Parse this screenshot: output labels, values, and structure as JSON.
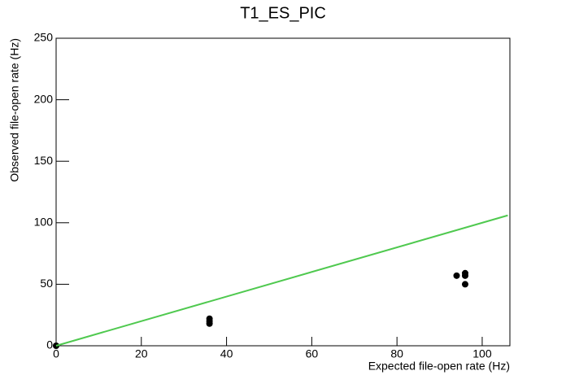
{
  "chart_data": {
    "type": "scatter",
    "title": "T1_ES_PIC",
    "x_label": "Expected file-open rate (Hz)",
    "y_label": "Observed file-open rate (Hz)",
    "xlim": [
      0,
      106.5
    ],
    "ylim": [
      0,
      250
    ],
    "xticks": [
      0,
      20,
      40,
      60,
      80,
      100
    ],
    "yticks": [
      0,
      50,
      100,
      150,
      200,
      250
    ],
    "grid": false,
    "series": [
      {
        "type": "scatter",
        "color": "#000000",
        "x": [
          0,
          36,
          36,
          36,
          94,
          96,
          96,
          96
        ],
        "values": [
          0,
          22,
          20,
          18,
          57,
          59,
          57,
          50
        ]
      },
      {
        "type": "line",
        "color": "#4fc94f",
        "x": [
          0,
          106
        ],
        "values": [
          0,
          106
        ]
      }
    ]
  }
}
